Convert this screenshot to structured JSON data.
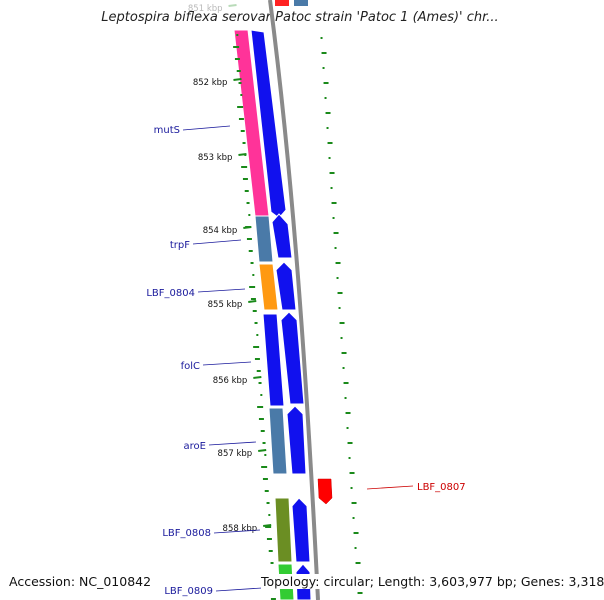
{
  "title": "Leptospira biflexa serovar Patoc strain 'Patoc 1 (Ames)' chr...",
  "footer": {
    "accession": "Accession: NC_010842",
    "summary": "Topology: circular; Length: 3,603,977 bp; Genes: 3,318"
  },
  "ticks": [
    {
      "label": "851 kbp",
      "faded": true
    },
    {
      "label": "852 kbp"
    },
    {
      "label": "853 kbp"
    },
    {
      "label": "854 kbp"
    },
    {
      "label": "855 kbp"
    },
    {
      "label": "856 kbp"
    },
    {
      "label": "857 kbp"
    },
    {
      "label": "858 kbp"
    }
  ],
  "genes": [
    {
      "name": "mutS",
      "strand": "forward",
      "color": "#ff3399",
      "reverse_color": "#1111ee"
    },
    {
      "name": "trpF",
      "strand": "forward",
      "color": "#4a7aa8",
      "reverse_color": "#1111ee"
    },
    {
      "name": "LBF_0804",
      "strand": "forward",
      "color": "#ff9911",
      "reverse_color": "#1111ee"
    },
    {
      "name": "folC",
      "strand": "forward",
      "color": "#1111ee",
      "reverse_color": "#1111ee"
    },
    {
      "name": "aroE",
      "strand": "forward",
      "color": "#4a7aa8",
      "reverse_color": "#1111ee"
    },
    {
      "name": "LBF_0807",
      "strand": "reverse",
      "color": "#ff0000"
    },
    {
      "name": "LBF_0808",
      "strand": "forward",
      "color": "#6b8e23",
      "reverse_color": "#1111ee"
    },
    {
      "name": "LBF_0809",
      "strand": "forward",
      "color": "#33cc33",
      "reverse_color": "#1111ee"
    }
  ],
  "colors": {
    "backbone": "#888888",
    "gc_skew": "#1a8a1a",
    "label_text": "#1a1a9c",
    "highlight_label": "#cc0000"
  }
}
